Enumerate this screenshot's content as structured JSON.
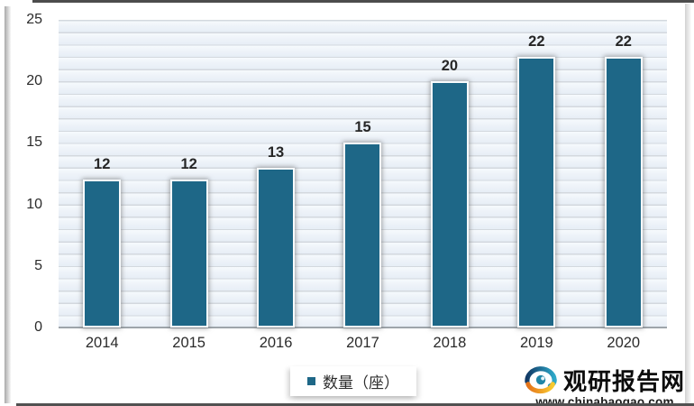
{
  "chart_data": {
    "type": "bar",
    "title": "",
    "categories": [
      "2014",
      "2015",
      "2016",
      "2017",
      "2018",
      "2019",
      "2020"
    ],
    "values": [
      12,
      12,
      13,
      15,
      20,
      22,
      22
    ],
    "data_labels": [
      "12",
      "12",
      "13",
      "15",
      "20",
      "22",
      "22"
    ],
    "series": [
      {
        "name": "数量（座）",
        "values": [
          12,
          12,
          13,
          15,
          20,
          22,
          22
        ]
      }
    ],
    "xlabel": "",
    "ylabel": "",
    "ylim": [
      0,
      25
    ],
    "yticks": [
      25,
      20,
      15,
      10,
      5,
      0
    ],
    "minor_grid_step": 1,
    "grid": "horizontal minor gridlines every 1 unit on light blue plot background",
    "legend_position": "bottom-center",
    "bar_color": "#1e6787"
  },
  "legend": {
    "label": "数量（座）",
    "marker_color": "#1e6787"
  },
  "watermark": {
    "site_name": "观研报告网",
    "url": "www.chinabaogao.com",
    "logo_icon": "swirl-logo-icon",
    "logo_blue_from": "#123a66",
    "logo_blue_to": "#2ea8c9",
    "logo_orange_from": "#e4731a",
    "logo_orange_to": "#f9cb30",
    "logo_center_teal": "#1f85a6"
  },
  "colors": {
    "bar": "#1e6787",
    "plot_background": "#ebf1f8",
    "gridline": "#d3d8de",
    "axis_line": "#9ea5ab",
    "text": "#2b2b2b",
    "frame_edge": "#4c4c4c"
  }
}
